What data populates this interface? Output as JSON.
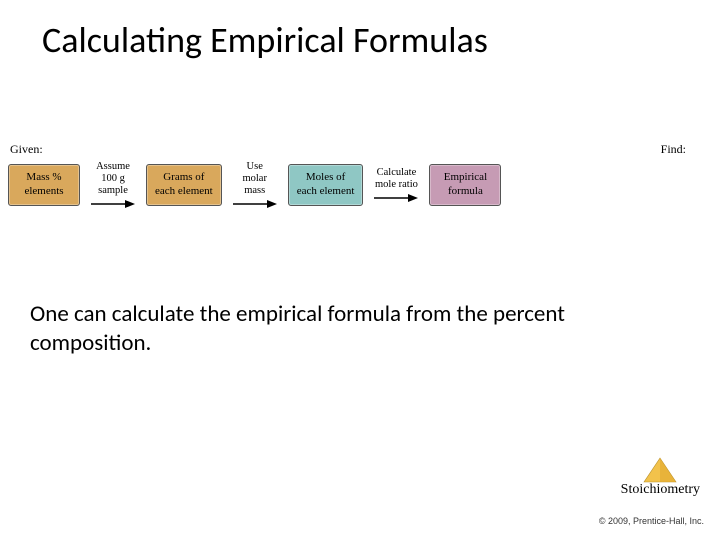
{
  "title": "Calculating Empirical Formulas",
  "labels": {
    "given": "Given:",
    "find": "Find:"
  },
  "boxes": [
    {
      "text": "Mass %\nelements",
      "bg": "#d9a85c"
    },
    {
      "text": "Grams of\neach element",
      "bg": "#d9a85c"
    },
    {
      "text": "Moles of\neach element",
      "bg": "#8fc7c4"
    },
    {
      "text": "Empirical\nformula",
      "bg": "#c69bb4"
    }
  ],
  "arrows": [
    {
      "label": "Assume\n100 g\nsample"
    },
    {
      "label": "Use\nmolar\nmass"
    },
    {
      "label": "Calculate\nmole ratio"
    }
  ],
  "arrow_color": "#000000",
  "body": "One can calculate the empirical formula from the percent composition.",
  "tag": "Stoichiometry",
  "triangle_color": "#f2c24b",
  "copyright": "© 2009, Prentice-Hall, Inc."
}
